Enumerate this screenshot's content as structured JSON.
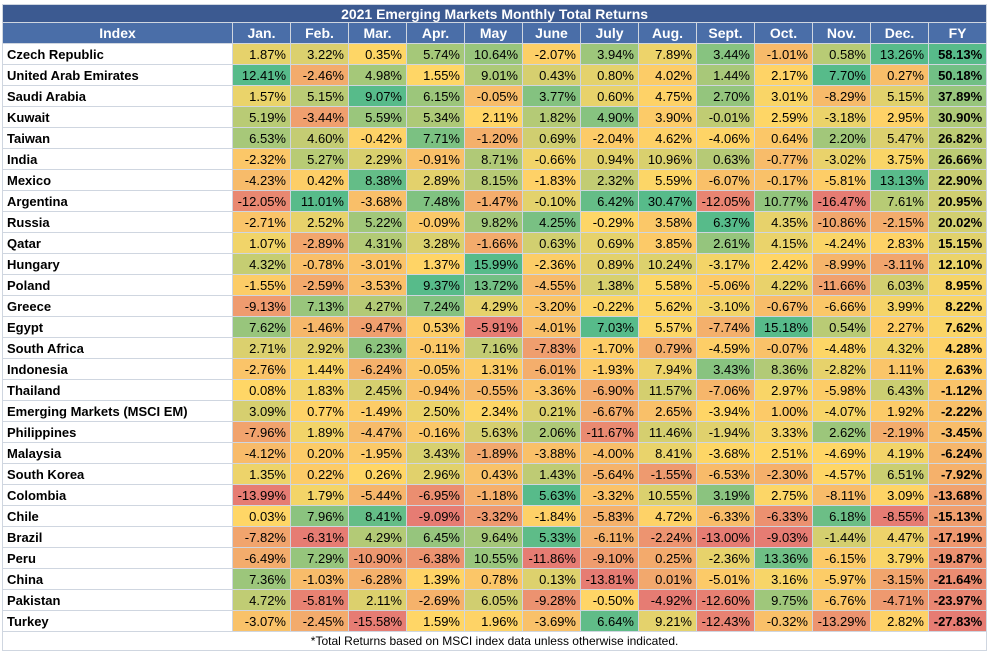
{
  "title": "2021 Emerging Markets Monthly Total Returns",
  "table": {
    "columns": [
      "Index",
      "Jan.",
      "Feb.",
      "Mar.",
      "Apr.",
      "May",
      "June",
      "July",
      "Aug.",
      "Sept.",
      "Oct.",
      "Nov.",
      "Dec.",
      "FY"
    ],
    "rows": [
      [
        "Czech Republic",
        "1.87%",
        "3.22%",
        "0.35%",
        "5.74%",
        "10.64%",
        "-2.07%",
        "3.94%",
        "7.89%",
        "3.44%",
        "-1.01%",
        "0.58%",
        "13.26%",
        "58.13%"
      ],
      [
        "United Arab Emirates",
        "12.41%",
        "-2.46%",
        "4.98%",
        "1.55%",
        "9.01%",
        "0.43%",
        "0.80%",
        "4.02%",
        "1.44%",
        "2.17%",
        "7.70%",
        "0.27%",
        "50.18%"
      ],
      [
        "Saudi Arabia",
        "1.57%",
        "5.15%",
        "9.07%",
        "6.15%",
        "-0.05%",
        "3.77%",
        "0.60%",
        "4.75%",
        "2.70%",
        "3.01%",
        "-8.29%",
        "5.15%",
        "37.89%"
      ],
      [
        "Kuwait",
        "5.19%",
        "-3.44%",
        "5.59%",
        "5.34%",
        "2.11%",
        "1.82%",
        "4.90%",
        "3.90%",
        "-0.01%",
        "2.59%",
        "-3.18%",
        "2.95%",
        "30.90%"
      ],
      [
        "Taiwan",
        "6.53%",
        "4.60%",
        "-0.42%",
        "7.71%",
        "-1.20%",
        "0.69%",
        "-2.04%",
        "4.62%",
        "-4.06%",
        "0.64%",
        "2.20%",
        "5.47%",
        "26.82%"
      ],
      [
        "India",
        "-2.32%",
        "5.27%",
        "2.29%",
        "-0.91%",
        "8.71%",
        "-0.66%",
        "0.94%",
        "10.96%",
        "0.63%",
        "-0.77%",
        "-3.02%",
        "3.75%",
        "26.66%"
      ],
      [
        "Mexico",
        "-4.23%",
        "0.42%",
        "8.38%",
        "2.89%",
        "8.15%",
        "-1.83%",
        "2.32%",
        "5.59%",
        "-6.07%",
        "-0.17%",
        "-5.81%",
        "13.13%",
        "22.90%"
      ],
      [
        "Argentina",
        "-12.05%",
        "11.01%",
        "-3.68%",
        "7.48%",
        "-1.47%",
        "-0.10%",
        "6.42%",
        "30.47%",
        "-12.05%",
        "10.77%",
        "-16.47%",
        "7.61%",
        "20.95%"
      ],
      [
        "Russia",
        "-2.71%",
        "2.52%",
        "5.22%",
        "-0.09%",
        "9.82%",
        "4.25%",
        "-0.29%",
        "3.58%",
        "6.37%",
        "4.35%",
        "-10.86%",
        "-2.15%",
        "20.02%"
      ],
      [
        "Qatar",
        "1.07%",
        "-2.89%",
        "4.31%",
        "3.28%",
        "-1.66%",
        "0.63%",
        "0.69%",
        "3.85%",
        "2.61%",
        "4.15%",
        "-4.24%",
        "2.83%",
        "15.15%"
      ],
      [
        "Hungary",
        "4.32%",
        "-0.78%",
        "-3.01%",
        "1.37%",
        "15.99%",
        "-2.36%",
        "0.89%",
        "10.24%",
        "-3.17%",
        "2.42%",
        "-8.99%",
        "-3.11%",
        "12.10%"
      ],
      [
        "Poland",
        "-1.55%",
        "-2.59%",
        "-3.53%",
        "9.37%",
        "13.72%",
        "-4.55%",
        "1.38%",
        "5.58%",
        "-5.06%",
        "4.22%",
        "-11.66%",
        "6.03%",
        "8.95%"
      ],
      [
        "Greece",
        "-9.13%",
        "7.13%",
        "4.27%",
        "7.24%",
        "4.29%",
        "-3.20%",
        "-0.22%",
        "5.62%",
        "-3.10%",
        "-0.67%",
        "-6.66%",
        "3.99%",
        "8.22%"
      ],
      [
        "Egypt",
        "7.62%",
        "-1.46%",
        "-9.47%",
        "0.53%",
        "-5.91%",
        "-4.01%",
        "7.03%",
        "5.57%",
        "-7.74%",
        "15.18%",
        "0.54%",
        "2.27%",
        "7.62%"
      ],
      [
        "South Africa",
        "2.71%",
        "2.92%",
        "6.23%",
        "-0.11%",
        "7.16%",
        "-7.83%",
        "-1.70%",
        "0.79%",
        "-4.59%",
        "-0.07%",
        "-4.48%",
        "4.32%",
        "4.28%"
      ],
      [
        "Indonesia",
        "-2.76%",
        "1.44%",
        "-6.24%",
        "-0.05%",
        "1.31%",
        "-6.01%",
        "-1.93%",
        "7.94%",
        "3.43%",
        "8.36%",
        "-2.82%",
        "1.11%",
        "2.63%"
      ],
      [
        "Thailand",
        "0.08%",
        "1.83%",
        "2.45%",
        "-0.94%",
        "-0.55%",
        "-3.36%",
        "-6.90%",
        "11.57%",
        "-7.06%",
        "2.97%",
        "-5.98%",
        "6.43%",
        "-1.12%"
      ],
      [
        "Emerging Markets (MSCI EM)",
        "3.09%",
        "0.77%",
        "-1.49%",
        "2.50%",
        "2.34%",
        "0.21%",
        "-6.67%",
        "2.65%",
        "-3.94%",
        "1.00%",
        "-4.07%",
        "1.92%",
        "-2.22%"
      ],
      [
        "Philippines",
        "-7.96%",
        "1.89%",
        "-4.47%",
        "-0.16%",
        "5.63%",
        "2.06%",
        "-11.67%",
        "11.46%",
        "-1.94%",
        "3.33%",
        "2.62%",
        "-2.19%",
        "-3.45%"
      ],
      [
        "Malaysia",
        "-4.12%",
        "0.20%",
        "-1.95%",
        "3.43%",
        "-1.89%",
        "-3.88%",
        "-4.00%",
        "8.41%",
        "-3.68%",
        "2.51%",
        "-4.69%",
        "4.19%",
        "-6.24%"
      ],
      [
        "South Korea",
        "1.35%",
        "0.22%",
        "0.26%",
        "2.96%",
        "0.43%",
        "1.43%",
        "-5.64%",
        "-1.55%",
        "-6.53%",
        "-2.30%",
        "-4.57%",
        "6.51%",
        "-7.92%"
      ],
      [
        "Colombia",
        "-13.99%",
        "1.79%",
        "-5.44%",
        "-6.95%",
        "-1.18%",
        "5.63%",
        "-3.32%",
        "10.55%",
        "3.19%",
        "2.75%",
        "-8.11%",
        "3.09%",
        "-13.68%"
      ],
      [
        "Chile",
        "0.03%",
        "7.96%",
        "8.41%",
        "-9.09%",
        "-3.32%",
        "-1.84%",
        "-5.83%",
        "4.72%",
        "-6.33%",
        "-6.33%",
        "6.18%",
        "-8.55%",
        "-15.13%"
      ],
      [
        "Brazil",
        "-7.82%",
        "-6.31%",
        "4.29%",
        "6.45%",
        "9.64%",
        "5.33%",
        "-6.11%",
        "-2.24%",
        "-13.00%",
        "-9.03%",
        "-1.44%",
        "4.47%",
        "-17.19%"
      ],
      [
        "Peru",
        "-6.49%",
        "7.29%",
        "-10.90%",
        "-6.38%",
        "10.55%",
        "-11.86%",
        "-9.10%",
        "0.25%",
        "-2.36%",
        "13.36%",
        "-6.15%",
        "3.79%",
        "-19.87%"
      ],
      [
        "China",
        "7.36%",
        "-1.03%",
        "-6.28%",
        "1.39%",
        "0.78%",
        "0.13%",
        "-13.81%",
        "0.01%",
        "-5.01%",
        "3.16%",
        "-5.97%",
        "-3.15%",
        "-21.64%"
      ],
      [
        "Pakistan",
        "4.72%",
        "-5.81%",
        "2.11%",
        "-2.69%",
        "6.05%",
        "-9.28%",
        "-0.50%",
        "-4.92%",
        "-12.60%",
        "9.75%",
        "-6.76%",
        "-4.71%",
        "-23.97%"
      ],
      [
        "Turkey",
        "-3.07%",
        "-2.45%",
        "-15.58%",
        "1.59%",
        "1.96%",
        "-3.69%",
        "6.64%",
        "9.21%",
        "-12.43%",
        "-0.32%",
        "-13.29%",
        "2.82%",
        "-27.83%"
      ]
    ]
  },
  "footnote": "*Total Returns based on MSCI index data unless otherwise indicated."
}
